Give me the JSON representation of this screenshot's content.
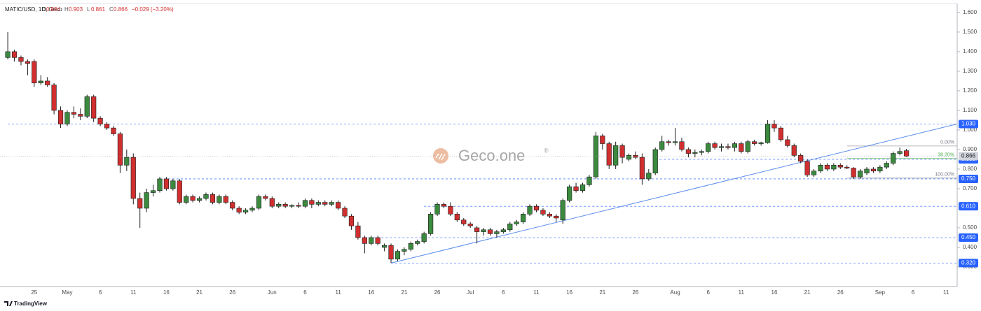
{
  "header": {
    "symbol": "MATIC/USD, 1D, Geco",
    "ohlc_labels": [
      "O",
      "H",
      "L",
      "C"
    ],
    "change": "−0.029 (−3.20%)"
  },
  "watermark": {
    "brand": "Geco.one",
    "mark": "®"
  },
  "footer": {
    "logo": "TradingView"
  },
  "chart_data": {
    "type": "candlestick",
    "categories": [
      null,
      null,
      null,
      null,
      "25",
      null,
      null,
      null,
      null,
      "May",
      null,
      null,
      null,
      null,
      "6",
      null,
      null,
      null,
      null,
      "11",
      null,
      null,
      null,
      null,
      "16",
      null,
      null,
      null,
      null,
      "21",
      null,
      null,
      null,
      null,
      "26",
      null,
      null,
      null,
      null,
      null,
      "Jun",
      null,
      null,
      null,
      null,
      "6",
      null,
      null,
      null,
      null,
      "11",
      null,
      null,
      null,
      null,
      "16",
      null,
      null,
      null,
      null,
      "21",
      null,
      null,
      null,
      null,
      "26",
      null,
      null,
      null,
      null,
      "Jul",
      null,
      null,
      null,
      null,
      "6",
      null,
      null,
      null,
      null,
      "11",
      null,
      null,
      null,
      null,
      "16",
      null,
      null,
      null,
      null,
      "21",
      null,
      null,
      null,
      null,
      "26",
      null,
      null,
      null,
      null,
      null,
      "Aug",
      null,
      null,
      null,
      null,
      "6",
      null,
      null,
      null,
      null,
      "11",
      null,
      null,
      null,
      null,
      "16",
      null,
      null,
      null,
      null,
      "21",
      null,
      null,
      null,
      null,
      "26",
      null,
      null,
      null,
      null,
      null,
      "Sep",
      null,
      null,
      null,
      null,
      "6",
      null,
      null,
      null,
      null,
      "11"
    ],
    "open": [
      1.37,
      1.4,
      1.37,
      1.35,
      1.35,
      1.24,
      1.25,
      1.23,
      1.1,
      1.03,
      1.09,
      1.08,
      1.07,
      1.17,
      1.06,
      1.03,
      1.01,
      0.98,
      0.82,
      0.86,
      0.65,
      0.6,
      0.68,
      0.69,
      0.75,
      0.7,
      0.74,
      0.63,
      0.66,
      0.64,
      0.65,
      0.67,
      0.63,
      0.66,
      0.63,
      0.6,
      0.58,
      0.59,
      0.6,
      0.66,
      0.65,
      0.61,
      0.62,
      0.61,
      0.615,
      0.61,
      0.64,
      0.62,
      0.63,
      0.62,
      0.63,
      0.6,
      0.56,
      0.51,
      0.45,
      0.42,
      0.45,
      0.4,
      0.41,
      0.34,
      0.38,
      0.39,
      0.42,
      0.43,
      0.47,
      0.57,
      0.62,
      0.61,
      0.57,
      0.54,
      0.52,
      0.5,
      0.48,
      0.49,
      0.47,
      0.48,
      0.49,
      0.52,
      0.53,
      0.57,
      0.61,
      0.59,
      0.57,
      0.56,
      0.54,
      0.64,
      0.71,
      0.69,
      0.72,
      0.76,
      0.97,
      0.93,
      0.82,
      0.92,
      0.85,
      0.87,
      0.86,
      0.75,
      0.78,
      0.9,
      0.94,
      0.935,
      0.94,
      0.9,
      0.88,
      0.885,
      0.89,
      0.93,
      0.91,
      0.915,
      0.91,
      0.93,
      0.89,
      0.94,
      0.93,
      0.935,
      1.03,
      1.01,
      0.95,
      0.92,
      0.87,
      0.84,
      0.77,
      0.79,
      0.82,
      0.8,
      0.82,
      0.81,
      0.805,
      0.76,
      0.78,
      0.8,
      0.79,
      0.81,
      0.83,
      0.88,
      0.894,
      null,
      null,
      null,
      null,
      null,
      null
    ],
    "high": [
      1.5,
      1.41,
      1.38,
      1.36,
      1.36,
      1.28,
      1.27,
      1.24,
      1.12,
      1.1,
      1.12,
      1.11,
      1.18,
      1.18,
      1.07,
      1.04,
      1.02,
      0.99,
      0.9,
      0.88,
      0.68,
      0.7,
      0.72,
      0.76,
      0.76,
      0.75,
      0.75,
      0.67,
      0.67,
      0.66,
      0.68,
      0.68,
      0.67,
      0.67,
      0.64,
      0.61,
      0.6,
      0.61,
      0.67,
      0.67,
      0.66,
      0.63,
      0.63,
      0.62,
      0.63,
      0.65,
      0.65,
      0.64,
      0.64,
      0.64,
      0.64,
      0.61,
      0.57,
      0.53,
      0.46,
      0.46,
      0.46,
      0.42,
      0.42,
      0.39,
      0.4,
      0.43,
      0.44,
      0.48,
      0.58,
      0.63,
      0.63,
      0.63,
      0.58,
      0.55,
      0.53,
      0.51,
      0.5,
      0.5,
      0.49,
      0.5,
      0.53,
      0.54,
      0.58,
      0.62,
      0.62,
      0.6,
      0.58,
      0.57,
      0.65,
      0.72,
      0.73,
      0.73,
      0.77,
      0.99,
      0.98,
      0.94,
      0.94,
      0.93,
      0.88,
      0.89,
      0.88,
      0.8,
      0.91,
      0.97,
      0.95,
      1.01,
      0.96,
      0.91,
      0.9,
      0.9,
      0.94,
      0.94,
      0.93,
      0.93,
      0.94,
      0.94,
      0.95,
      0.95,
      0.94,
      1.05,
      1.05,
      1.02,
      0.97,
      0.93,
      0.88,
      0.85,
      0.8,
      0.83,
      0.83,
      0.83,
      0.83,
      0.82,
      0.81,
      0.8,
      0.81,
      0.81,
      0.82,
      0.84,
      0.89,
      0.91,
      0.903,
      null,
      null,
      null,
      null,
      null,
      null
    ],
    "low": [
      1.36,
      1.35,
      1.33,
      1.28,
      1.22,
      1.23,
      1.22,
      1.08,
      1.01,
      1.02,
      1.06,
      1.05,
      1.06,
      1.04,
      1.02,
      1.0,
      0.97,
      0.78,
      0.79,
      0.62,
      0.5,
      0.58,
      0.66,
      0.68,
      0.69,
      0.69,
      0.62,
      0.62,
      0.63,
      0.63,
      0.64,
      0.62,
      0.62,
      0.62,
      0.59,
      0.57,
      0.57,
      0.58,
      0.59,
      0.64,
      0.6,
      0.6,
      0.6,
      0.6,
      0.6,
      0.6,
      0.6,
      0.61,
      0.61,
      0.61,
      0.59,
      0.55,
      0.49,
      0.44,
      0.37,
      0.41,
      0.41,
      0.38,
      0.32,
      0.33,
      0.36,
      0.38,
      0.41,
      0.42,
      0.46,
      0.56,
      0.6,
      0.56,
      0.53,
      0.51,
      0.5,
      0.42,
      0.46,
      0.46,
      0.45,
      0.47,
      0.48,
      0.51,
      0.52,
      0.56,
      0.58,
      0.56,
      0.55,
      0.53,
      0.52,
      0.63,
      0.68,
      0.68,
      0.71,
      0.75,
      0.9,
      0.8,
      0.8,
      0.83,
      0.84,
      0.85,
      0.72,
      0.74,
      0.77,
      0.89,
      0.92,
      0.92,
      0.89,
      0.86,
      0.86,
      0.87,
      0.88,
      0.9,
      0.89,
      0.9,
      0.89,
      0.88,
      0.88,
      0.92,
      0.92,
      0.93,
      0.99,
      0.94,
      0.91,
      0.86,
      0.83,
      0.76,
      0.76,
      0.78,
      0.79,
      0.79,
      0.8,
      0.8,
      0.75,
      0.75,
      0.77,
      0.78,
      0.78,
      0.8,
      0.82,
      0.87,
      0.861,
      null,
      null,
      null,
      null,
      null,
      null
    ],
    "close": [
      1.4,
      1.37,
      1.35,
      1.34,
      1.24,
      1.25,
      1.23,
      1.1,
      1.03,
      1.09,
      1.08,
      1.07,
      1.17,
      1.06,
      1.03,
      1.01,
      0.98,
      0.82,
      0.86,
      0.65,
      0.6,
      0.68,
      0.69,
      0.75,
      0.7,
      0.74,
      0.63,
      0.66,
      0.64,
      0.65,
      0.67,
      0.63,
      0.66,
      0.63,
      0.6,
      0.58,
      0.59,
      0.6,
      0.66,
      0.65,
      0.61,
      0.62,
      0.61,
      0.615,
      0.61,
      0.64,
      0.62,
      0.63,
      0.62,
      0.63,
      0.6,
      0.56,
      0.51,
      0.45,
      0.42,
      0.45,
      0.42,
      0.41,
      0.34,
      0.38,
      0.39,
      0.42,
      0.43,
      0.47,
      0.57,
      0.62,
      0.61,
      0.57,
      0.54,
      0.52,
      0.51,
      0.48,
      0.49,
      0.47,
      0.48,
      0.49,
      0.52,
      0.53,
      0.57,
      0.61,
      0.59,
      0.57,
      0.56,
      0.55,
      0.64,
      0.71,
      0.69,
      0.72,
      0.76,
      0.97,
      0.93,
      0.82,
      0.92,
      0.86,
      0.87,
      0.86,
      0.75,
      0.78,
      0.9,
      0.94,
      0.935,
      0.94,
      0.9,
      0.88,
      0.885,
      0.89,
      0.93,
      0.91,
      0.915,
      0.91,
      0.93,
      0.89,
      0.94,
      0.93,
      0.935,
      1.03,
      1.01,
      0.95,
      0.92,
      0.87,
      0.84,
      0.77,
      0.79,
      0.82,
      0.8,
      0.82,
      0.81,
      0.805,
      0.76,
      0.79,
      0.8,
      0.79,
      0.81,
      0.83,
      0.88,
      0.89,
      0.866,
      null,
      null,
      null,
      null,
      null,
      null
    ],
    "up_color": "#3b8a3e",
    "down_color": "#d12f2f",
    "border_color": "#1c1c1c",
    "ylim": [
      0.2,
      1.646
    ],
    "yticks": [
      {
        "value": 0.3,
        "label": "0.300"
      },
      {
        "value": 0.4,
        "label": "0.400"
      },
      {
        "value": 0.5,
        "label": "0.500"
      },
      {
        "value": 0.7,
        "label": "0.700"
      },
      {
        "value": 0.8,
        "label": "0.800"
      },
      {
        "value": 0.9,
        "label": "0.900"
      },
      {
        "value": 1.0,
        "label": "1.000"
      },
      {
        "value": 1.1,
        "label": "1.100"
      },
      {
        "value": 1.2,
        "label": "1.200"
      },
      {
        "value": 1.3,
        "label": "1.300"
      },
      {
        "value": 1.4,
        "label": "1.400"
      },
      {
        "value": 1.5,
        "label": "1.500"
      },
      {
        "value": 1.6,
        "label": "1.600"
      }
    ],
    "levels": [
      {
        "value": 1.03,
        "label": "1.030",
        "start": 0
      },
      {
        "value": 0.85,
        "label": "0.850",
        "start": 98
      },
      {
        "value": 0.75,
        "label": "0.750",
        "start": 23
      },
      {
        "value": 0.61,
        "label": "0.610",
        "start": 63
      },
      {
        "value": 0.45,
        "label": "0.450",
        "start": 54
      },
      {
        "value": 0.32,
        "label": "0.320",
        "start": 58
      }
    ],
    "level_color": "#2962ff",
    "fib": [
      {
        "label": "0.00%",
        "value": 0.918,
        "color": "#787b86"
      },
      {
        "label": "38.20%",
        "value": 0.855,
        "color": "#4caf50"
      },
      {
        "label": "100.00%",
        "value": 0.754,
        "color": "#787b86"
      }
    ],
    "fib_start": 127,
    "trendline": {
      "x": [
        58,
        143.6
      ],
      "y": [
        0.32,
        1.03
      ],
      "color": "#5b8def"
    }
  }
}
